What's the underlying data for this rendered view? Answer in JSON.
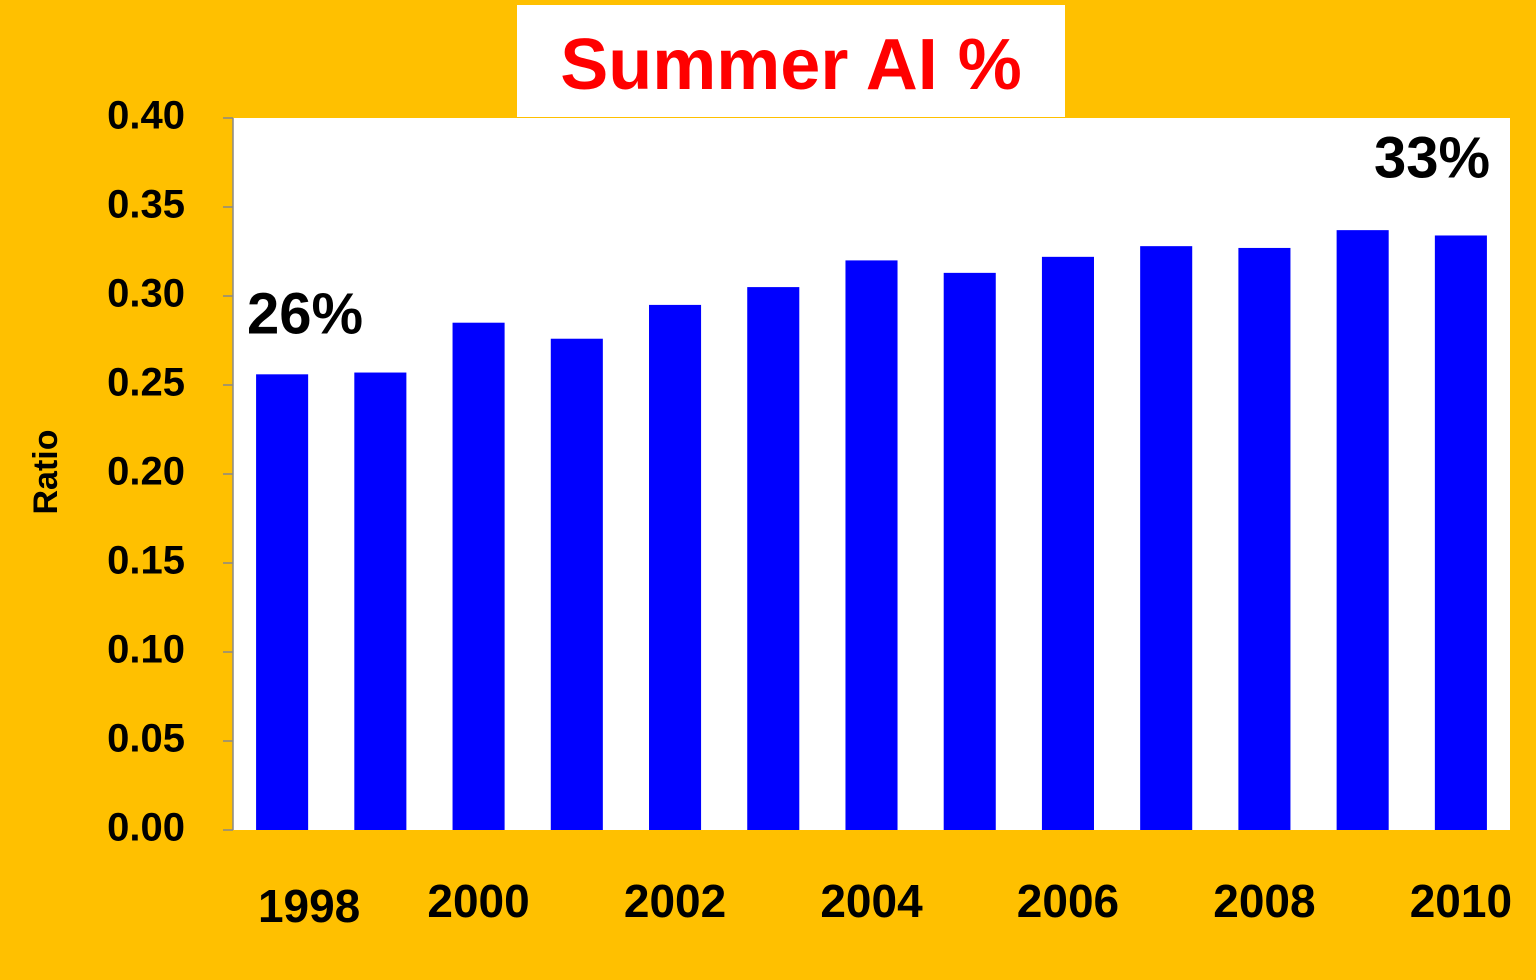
{
  "chart_data": {
    "type": "bar",
    "title": "Summer AI %",
    "y_label": "Ratio",
    "categories": [
      "1998",
      null,
      "2000",
      null,
      "2002",
      null,
      "2004",
      null,
      "2006",
      null,
      "2008",
      null,
      "2010"
    ],
    "values": [
      0.256,
      0.257,
      0.285,
      0.276,
      0.295,
      0.305,
      0.32,
      0.313,
      0.322,
      0.328,
      0.327,
      0.337,
      0.334
    ],
    "color": "#0000FF",
    "ylim": [
      0,
      0.4
    ],
    "yticks": [
      {
        "value": 0,
        "label": "0.00"
      },
      {
        "value": 0.05,
        "label": "0.05"
      },
      {
        "value": 0.1,
        "label": "0.10"
      },
      {
        "value": 0.15,
        "label": "0.15"
      },
      {
        "value": 0.2,
        "label": "0.20"
      },
      {
        "value": 0.25,
        "label": "0.25"
      },
      {
        "value": 0.3,
        "label": "0.30"
      },
      {
        "value": 0.35,
        "label": "0.35"
      },
      {
        "value": 0.4,
        "label": "0.40"
      }
    ],
    "annotations": [
      {
        "text": "26%"
      },
      {
        "text": "33%"
      }
    ]
  }
}
